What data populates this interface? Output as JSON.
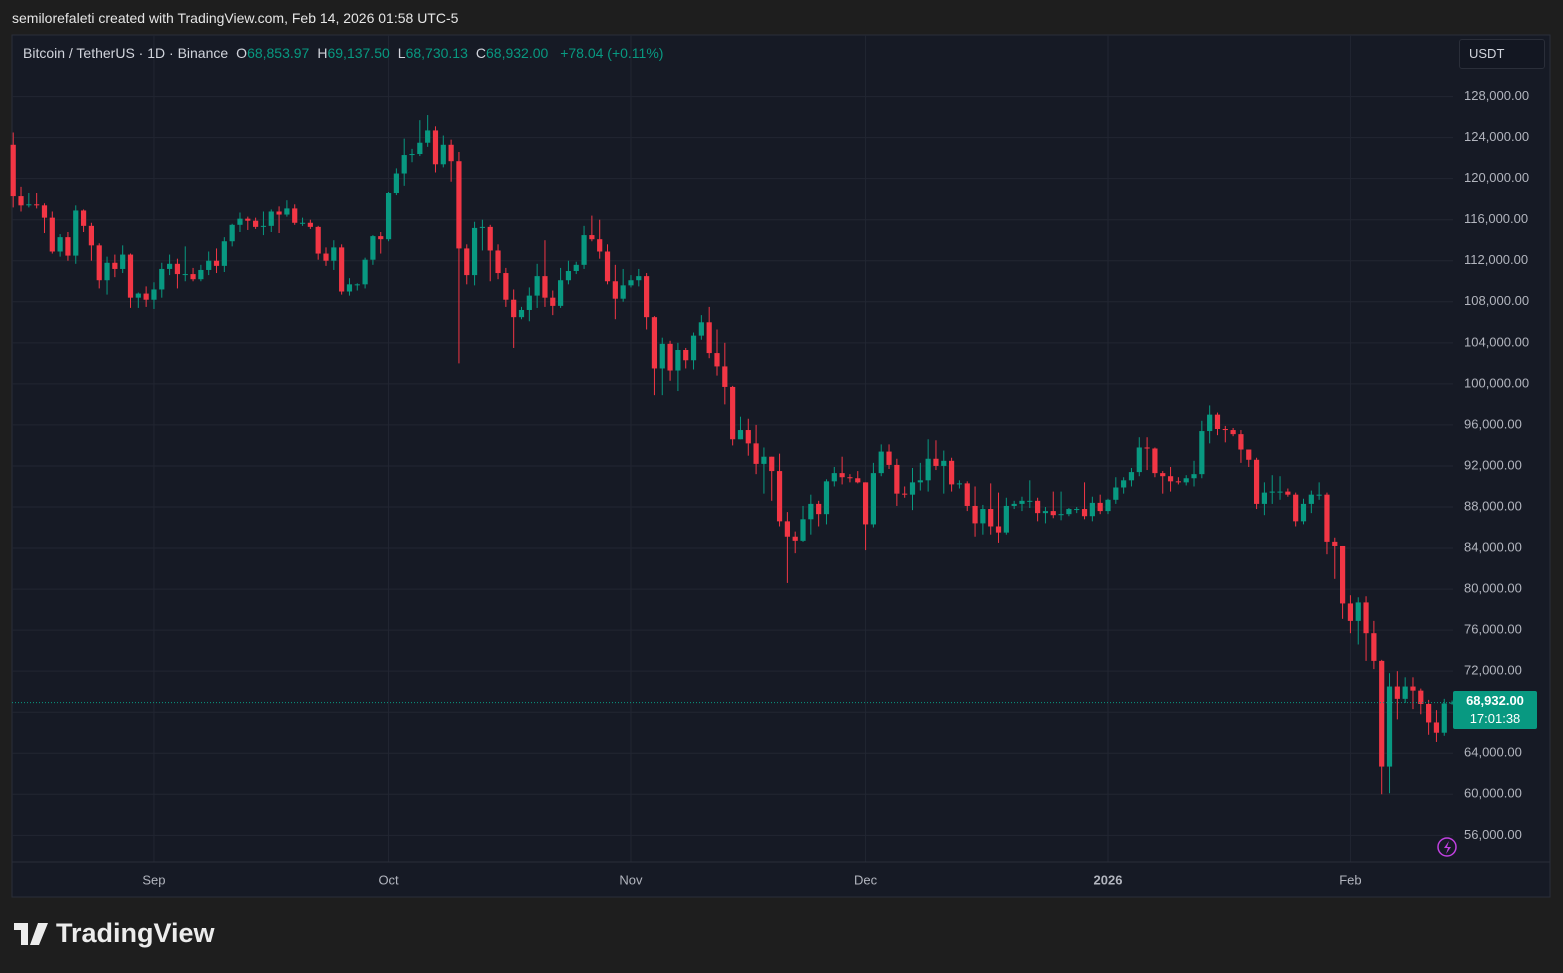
{
  "attribution": "semilorefaleti created with TradingView.com, Feb 14, 2026 01:58 UTC-5",
  "logo": "TradingView",
  "currency": "USDT",
  "chart_data": {
    "type": "candlestick",
    "title": "Bitcoin / TetherUS · 1D · Binance",
    "ohlc_fields": [
      {
        "key": "O",
        "label": "68,853.97"
      },
      {
        "key": "H",
        "label": "69,137.50"
      },
      {
        "key": "L",
        "label": "68,730.13"
      },
      {
        "key": "C",
        "label": "68,932.00"
      }
    ],
    "change_label": "+78.04 (+0.11%)",
    "last_price_label": "68,932.00",
    "countdown": "17:01:38",
    "up_color": "#089981",
    "down_color": "#f23645",
    "grid": true,
    "categories": [
      null,
      null,
      null,
      null,
      null,
      null,
      null,
      null,
      null,
      null,
      null,
      null,
      null,
      null,
      null,
      null,
      null,
      null,
      "Sep",
      null,
      null,
      null,
      null,
      null,
      null,
      null,
      null,
      null,
      null,
      null,
      null,
      null,
      null,
      null,
      null,
      null,
      null,
      null,
      null,
      null,
      null,
      null,
      null,
      null,
      null,
      null,
      null,
      null,
      "Oct",
      null,
      null,
      null,
      null,
      null,
      null,
      null,
      null,
      null,
      null,
      null,
      null,
      null,
      null,
      null,
      null,
      null,
      null,
      null,
      null,
      null,
      null,
      null,
      null,
      null,
      null,
      null,
      null,
      null,
      null,
      "Nov",
      null,
      null,
      null,
      null,
      null,
      null,
      null,
      null,
      null,
      null,
      null,
      null,
      null,
      null,
      null,
      null,
      null,
      null,
      null,
      null,
      null,
      null,
      null,
      null,
      null,
      null,
      null,
      null,
      null,
      "Dec",
      null,
      null,
      null,
      null,
      null,
      null,
      null,
      null,
      null,
      null,
      null,
      null,
      null,
      null,
      null,
      null,
      null,
      null,
      null,
      null,
      null,
      null,
      null,
      null,
      null,
      null,
      null,
      null,
      null,
      null,
      "2026",
      null,
      null,
      null,
      null,
      null,
      null,
      null,
      null,
      null,
      null,
      null,
      null,
      null,
      null,
      null,
      null,
      null,
      null,
      null,
      null,
      null,
      null,
      null,
      null,
      null,
      null,
      null,
      null,
      null,
      null,
      "Feb",
      null,
      null,
      null,
      null,
      null,
      null,
      null,
      null,
      null,
      null,
      null,
      null,
      null
    ],
    "open": [
      123300,
      118300,
      117400,
      117500,
      117400,
      116200,
      112900,
      114300,
      112500,
      116900,
      115400,
      113500,
      110100,
      111800,
      111200,
      112600,
      108400,
      108800,
      108200,
      109200,
      111200,
      111700,
      110700,
      110700,
      110200,
      111100,
      112000,
      111500,
      113900,
      115500,
      116100,
      115900,
      115300,
      115400,
      116800,
      116500,
      117100,
      115700,
      115700,
      115300,
      112700,
      112000,
      113300,
      109000,
      109700,
      109700,
      112100,
      114400,
      114100,
      118600,
      120500,
      122300,
      122400,
      123500,
      124700,
      121400,
      123300,
      121700,
      113200,
      110600,
      115200,
      115300,
      113000,
      110800,
      108200,
      106500,
      107200,
      108600,
      110500,
      108400,
      107600,
      110100,
      111000,
      111600,
      114500,
      114100,
      112900,
      110000,
      108300,
      109600,
      110100,
      110500,
      106500,
      101500,
      103900,
      101300,
      103300,
      102300,
      104700,
      106000,
      103000,
      101700,
      99700,
      94600,
      95500,
      94200,
      92200,
      92900,
      91500,
      86600,
      85100,
      84700,
      86800,
      88300,
      87300,
      90500,
      91300,
      90900,
      90800,
      90400,
      86300,
      91300,
      93400,
      92100,
      89300,
      89200,
      90400,
      90600,
      92700,
      92000,
      92500,
      90200,
      90300,
      88100,
      86400,
      87800,
      86100,
      85500,
      88100,
      88300,
      88600,
      88600,
      87400,
      87600,
      87200,
      87300,
      87800,
      87800,
      87100,
      88400,
      87600,
      88700,
      89900,
      90600,
      91400,
      93800,
      93700,
      91300,
      91000,
      90500,
      90400,
      90800,
      91200,
      95400,
      97000,
      95600,
      95500,
      95100,
      93600,
      92600,
      88300,
      89400,
      89500,
      89500,
      89200,
      86600,
      88300,
      89200,
      89200,
      84600,
      84200,
      78600,
      76900,
      78700,
      75700,
      73000,
      62700,
      70500,
      69300,
      70500,
      70100,
      68800,
      67000,
      66000,
      68853.97
    ],
    "high": [
      124500,
      119200,
      118600,
      118600,
      117600,
      116800,
      114600,
      114800,
      117400,
      117000,
      115700,
      113700,
      112400,
      112600,
      113500,
      112700,
      108900,
      109500,
      109900,
      111800,
      112600,
      112200,
      113400,
      111300,
      111600,
      112900,
      113200,
      114300,
      115600,
      116700,
      116300,
      116200,
      116800,
      117000,
      117300,
      117900,
      117500,
      116200,
      116000,
      115400,
      113300,
      114000,
      113600,
      110300,
      109800,
      112300,
      114500,
      114800,
      118700,
      121000,
      123900,
      122900,
      125700,
      126200,
      125100,
      124200,
      123800,
      122600,
      113600,
      115800,
      116000,
      115500,
      113600,
      111300,
      109200,
      107500,
      109400,
      111700,
      114000,
      109100,
      111300,
      112000,
      111900,
      115400,
      116400,
      116000,
      113600,
      111600,
      111200,
      110600,
      111200,
      110800,
      106600,
      104500,
      104200,
      104000,
      103500,
      105000,
      106700,
      107500,
      105300,
      104000,
      99800,
      96800,
      96600,
      96000,
      93800,
      92900,
      93200,
      87500,
      85600,
      88100,
      89200,
      88600,
      90700,
      91900,
      92900,
      91200,
      91500,
      90400,
      92300,
      94100,
      94100,
      92700,
      90000,
      91800,
      92300,
      94600,
      94500,
      93500,
      92800,
      90600,
      90500,
      90000,
      88200,
      90300,
      89400,
      88900,
      88600,
      89000,
      90600,
      88900,
      88000,
      89500,
      89500,
      87900,
      88000,
      90400,
      89000,
      89200,
      88800,
      90900,
      90900,
      91800,
      94800,
      94800,
      93800,
      91500,
      91900,
      90900,
      91100,
      92500,
      96400,
      97900,
      97200,
      95900,
      95700,
      95500,
      93600,
      92800,
      90400,
      91100,
      91000,
      89800,
      89400,
      88800,
      89600,
      90400,
      89400,
      85000,
      84200,
      79400,
      79200,
      79300,
      76900,
      73100,
      71800,
      72000,
      71400,
      71400,
      70300,
      69200,
      68200,
      69300,
      69137.5
    ],
    "low": [
      117200,
      116800,
      117200,
      117100,
      114700,
      112700,
      112400,
      112000,
      111700,
      114800,
      112000,
      109300,
      108700,
      110400,
      110800,
      107400,
      107400,
      107500,
      107300,
      108400,
      110600,
      109300,
      110000,
      110000,
      110000,
      110600,
      110800,
      110900,
      113400,
      114800,
      115000,
      115100,
      114500,
      114800,
      114700,
      116300,
      115500,
      115400,
      115100,
      112100,
      111500,
      111100,
      108700,
      108600,
      109100,
      109300,
      111600,
      112700,
      113900,
      118400,
      119300,
      121600,
      122200,
      123100,
      120600,
      121100,
      119700,
      102000,
      109700,
      109600,
      113000,
      110000,
      110200,
      107500,
      103500,
      106300,
      106100,
      107400,
      107500,
      106700,
      107400,
      109700,
      110700,
      111200,
      113900,
      112200,
      109700,
      106300,
      108000,
      109400,
      109500,
      105300,
      98900,
      98900,
      100300,
      99300,
      101500,
      101400,
      104300,
      102500,
      100800,
      98000,
      94000,
      94600,
      93000,
      91200,
      89300,
      88600,
      86100,
      80600,
      83500,
      84600,
      85300,
      86100,
      86300,
      90000,
      90200,
      90400,
      90300,
      83800,
      86000,
      91000,
      91700,
      88100,
      88900,
      87700,
      89600,
      89500,
      91600,
      89300,
      89500,
      89800,
      87600,
      85100,
      85300,
      85300,
      84500,
      85300,
      87800,
      87600,
      87900,
      86600,
      86400,
      86900,
      86700,
      87100,
      87400,
      86800,
      86600,
      87300,
      87300,
      88300,
      89300,
      90000,
      91000,
      91600,
      90900,
      89300,
      89500,
      90200,
      90100,
      90000,
      90800,
      94200,
      95000,
      94300,
      94900,
      92300,
      91900,
      87800,
      87200,
      88300,
      88700,
      89000,
      86100,
      86300,
      87400,
      88700,
      83400,
      81000,
      77100,
      75700,
      74600,
      73000,
      72200,
      60000,
      60100,
      67300,
      68900,
      68300,
      67800,
      65800,
      65100,
      65700,
      68730.13
    ],
    "close": [
      118300,
      117400,
      117500,
      117400,
      116200,
      112900,
      114300,
      112500,
      116900,
      115400,
      113500,
      110100,
      111800,
      111200,
      112600,
      108400,
      108800,
      108200,
      109200,
      111200,
      111700,
      110700,
      110700,
      110200,
      111100,
      112000,
      111500,
      113900,
      115500,
      116100,
      115900,
      115300,
      115400,
      116800,
      116500,
      117100,
      115700,
      115700,
      115300,
      112700,
      112000,
      113300,
      109000,
      109700,
      109700,
      112100,
      114400,
      114100,
      118600,
      120500,
      122300,
      122400,
      123500,
      124700,
      121400,
      123300,
      121700,
      113200,
      110600,
      115200,
      115300,
      113000,
      110800,
      108200,
      106500,
      107200,
      108600,
      110500,
      108400,
      107600,
      110100,
      111000,
      111600,
      114500,
      114100,
      112900,
      110000,
      108300,
      109600,
      110100,
      110500,
      106500,
      101500,
      103900,
      101300,
      103300,
      102300,
      104700,
      106000,
      103000,
      101700,
      99700,
      94600,
      95500,
      94200,
      92200,
      92900,
      91500,
      86600,
      85100,
      84700,
      86800,
      88300,
      87300,
      90500,
      91300,
      90900,
      90800,
      90400,
      86300,
      91300,
      93400,
      92100,
      89300,
      89200,
      90400,
      90600,
      92700,
      92000,
      92500,
      90200,
      90300,
      88100,
      86400,
      87800,
      86100,
      85500,
      88100,
      88300,
      88600,
      88600,
      87400,
      87600,
      87200,
      87300,
      87800,
      87800,
      87100,
      88400,
      87600,
      88700,
      89900,
      90600,
      91400,
      93800,
      93700,
      91300,
      91000,
      90500,
      90400,
      90800,
      91200,
      95400,
      97000,
      95600,
      95500,
      95100,
      93600,
      92600,
      88300,
      89400,
      89500,
      89500,
      89200,
      86600,
      88300,
      89200,
      89200,
      84600,
      84200,
      78600,
      76900,
      78700,
      75700,
      73000,
      62700,
      70500,
      69300,
      70500,
      70100,
      68800,
      67000,
      66000,
      68850,
      68932
    ],
    "ylim": [
      53400,
      134000
    ],
    "yticks": [
      {
        "value": 56000,
        "label": "56,000.00"
      },
      {
        "value": 60000,
        "label": "60,000.00"
      },
      {
        "value": 64000,
        "label": "64,000.00"
      },
      {
        "value": 68000,
        "label": "68,000.00"
      },
      {
        "value": 72000,
        "label": "72,000.00"
      },
      {
        "value": 76000,
        "label": "76,000.00"
      },
      {
        "value": 80000,
        "label": "80,000.00"
      },
      {
        "value": 84000,
        "label": "84,000.00"
      },
      {
        "value": 88000,
        "label": "88,000.00"
      },
      {
        "value": 92000,
        "label": "92,000.00"
      },
      {
        "value": 96000,
        "label": "96,000.00"
      },
      {
        "value": 100000,
        "label": "100,000.00"
      },
      {
        "value": 104000,
        "label": "104,000.00"
      },
      {
        "value": 108000,
        "label": "108,000.00"
      },
      {
        "value": 112000,
        "label": "112,000.00"
      },
      {
        "value": 116000,
        "label": "116,000.00"
      },
      {
        "value": 120000,
        "label": "120,000.00"
      },
      {
        "value": 124000,
        "label": "124,000.00"
      },
      {
        "value": 128000,
        "label": "128,000.00"
      }
    ]
  }
}
